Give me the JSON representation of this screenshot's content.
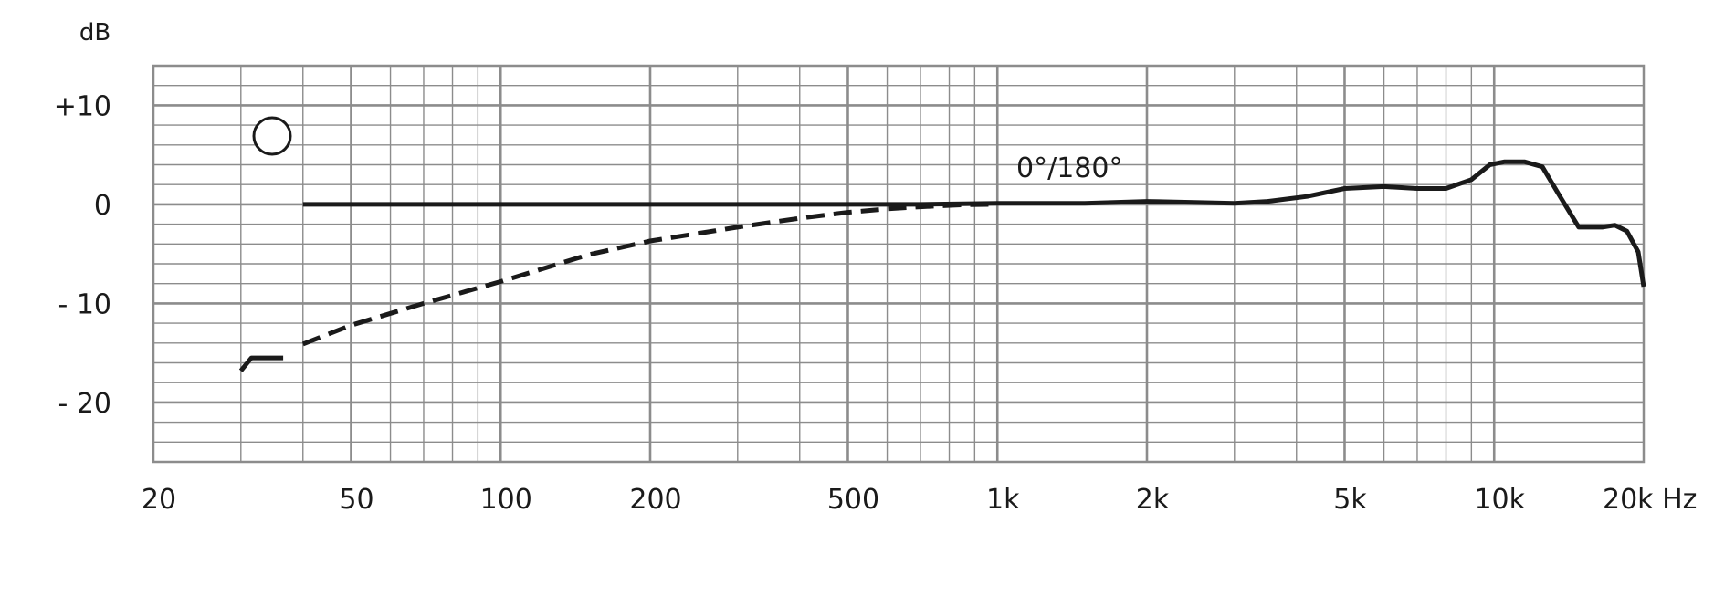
{
  "chart_data": {
    "type": "line",
    "title": "",
    "xlabel": "",
    "ylabel": "",
    "x_unit": "Hz",
    "y_unit": "dB",
    "x_scale": "log",
    "xlim": [
      20,
      20000
    ],
    "ylim": [
      -26,
      14
    ],
    "grid": true,
    "x_ticks": [
      {
        "value": 20,
        "label": "20"
      },
      {
        "value": 50,
        "label": "50"
      },
      {
        "value": 100,
        "label": "100"
      },
      {
        "value": 200,
        "label": "200"
      },
      {
        "value": 500,
        "label": "500"
      },
      {
        "value": 1000,
        "label": "1k"
      },
      {
        "value": 2000,
        "label": "2k"
      },
      {
        "value": 5000,
        "label": "5k"
      },
      {
        "value": 10000,
        "label": "10k"
      },
      {
        "value": 20000,
        "label": "20k Hz"
      }
    ],
    "y_ticks": [
      {
        "value": 10,
        "label": "+10"
      },
      {
        "value": 0,
        "label": "0"
      },
      {
        "value": -10,
        "label": "- 10"
      },
      {
        "value": -20,
        "label": "- 20"
      }
    ],
    "polar_pattern_icon": "omnidirectional-circle-icon",
    "curve_label": "0°/180°",
    "series": [
      {
        "style": "solid",
        "color": "#1a1a1a",
        "points": [
          [
            40,
            0
          ],
          [
            100,
            0
          ],
          [
            300,
            0
          ],
          [
            700,
            0
          ],
          [
            1000,
            0.1
          ],
          [
            1500,
            0.1
          ],
          [
            2000,
            0.3
          ],
          [
            2500,
            0.2
          ],
          [
            3000,
            0.1
          ],
          [
            3500,
            0.3
          ],
          [
            4200,
            0.8
          ],
          [
            5000,
            1.6
          ],
          [
            6000,
            1.8
          ],
          [
            7000,
            1.6
          ],
          [
            8000,
            1.6
          ],
          [
            9000,
            2.5
          ],
          [
            9800,
            4.0
          ],
          [
            10500,
            4.3
          ],
          [
            11500,
            4.3
          ],
          [
            12500,
            3.8
          ],
          [
            13500,
            1.0
          ],
          [
            14800,
            -2.3
          ],
          [
            16500,
            -2.3
          ],
          [
            17500,
            -2.1
          ],
          [
            18500,
            -2.7
          ],
          [
            19500,
            -4.8
          ],
          [
            20000,
            -8.3
          ]
        ]
      },
      {
        "style": "dashed",
        "color": "#1a1a1a",
        "points": [
          [
            40,
            -14.1
          ],
          [
            50,
            -12.2
          ],
          [
            70,
            -10.0
          ],
          [
            100,
            -7.8
          ],
          [
            150,
            -5.1
          ],
          [
            200,
            -3.7
          ],
          [
            300,
            -2.3
          ],
          [
            400,
            -1.4
          ],
          [
            500,
            -0.8
          ],
          [
            600,
            -0.45
          ],
          [
            700,
            -0.25
          ],
          [
            850,
            -0.05
          ],
          [
            1000,
            0
          ]
        ]
      },
      {
        "style": "solid",
        "color": "#1a1a1a",
        "points": [
          [
            30,
            -16.8
          ],
          [
            31.5,
            -15.5
          ],
          [
            36.5,
            -15.5
          ]
        ]
      }
    ]
  }
}
